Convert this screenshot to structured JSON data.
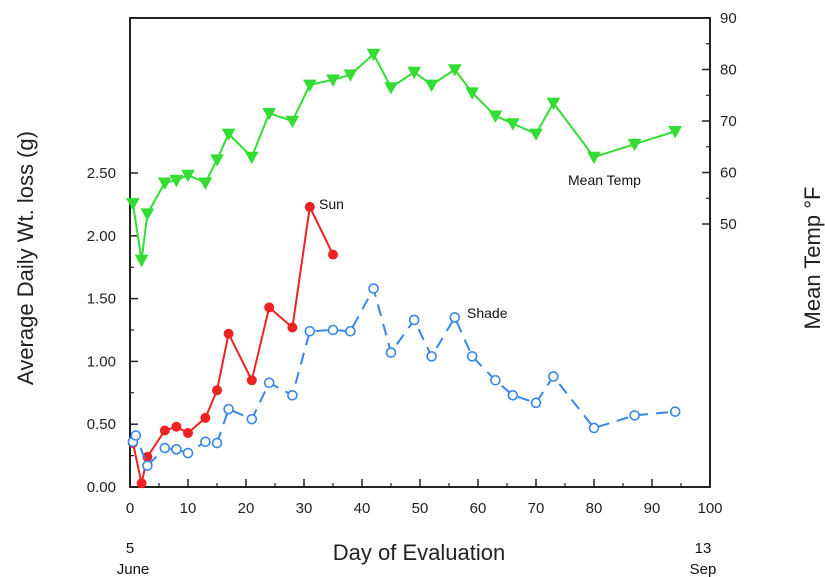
{
  "chart_data": {
    "type": "line",
    "xlabel": "Day of Evaluation",
    "ylabel_left": "Average Daily Wt. loss (g)",
    "ylabel_right": "Mean Temp  °F",
    "xlim": [
      0,
      100
    ],
    "ylim_left": [
      0,
      2.5
    ],
    "ylim_right": [
      50,
      90
    ],
    "x_ticks": [
      "0",
      "10",
      "20",
      "30",
      "40",
      "50",
      "60",
      "70",
      "80",
      "90",
      "100"
    ],
    "y_left_ticks": [
      "0.00",
      "0.50",
      "1.00",
      "1.50",
      "2.00",
      "2.50"
    ],
    "y_right_ticks": [
      "50",
      "60",
      "70",
      "80",
      "90"
    ],
    "date_start": {
      "day": "5",
      "month": "June"
    },
    "date_end": {
      "day": "13",
      "month": "Sep"
    },
    "colors": {
      "sun": "#ee2222",
      "shade": "#3a86e8",
      "temp": "#33dd33",
      "axis": "#222222"
    },
    "series": [
      {
        "name": "Sun",
        "axis": "left",
        "style": "solid-filled-circle",
        "x": [
          0.5,
          2,
          3,
          6,
          8,
          10,
          13,
          15,
          17,
          21,
          24,
          28,
          31,
          35
        ],
        "y": [
          0.35,
          0.03,
          0.24,
          0.45,
          0.48,
          0.43,
          0.55,
          0.77,
          1.22,
          0.85,
          1.43,
          1.27,
          2.23,
          1.85
        ]
      },
      {
        "name": "Shade",
        "axis": "left",
        "style": "dashed-open-circle",
        "x": [
          0.5,
          1,
          3,
          6,
          8,
          10,
          13,
          15,
          17,
          21,
          24,
          28,
          31,
          35,
          38,
          42,
          45,
          49,
          52,
          56,
          59,
          63,
          66,
          70,
          73,
          80,
          87,
          94
        ],
        "y": [
          0.36,
          0.41,
          0.17,
          0.31,
          0.3,
          0.27,
          0.36,
          0.35,
          0.62,
          0.54,
          0.83,
          0.73,
          1.24,
          1.25,
          1.24,
          1.58,
          1.07,
          1.33,
          1.04,
          1.35,
          1.04,
          0.85,
          0.73,
          0.67,
          0.88,
          0.47,
          0.57,
          0.6
        ]
      },
      {
        "name": "Mean Temp",
        "axis": "right",
        "style": "solid-filled-triangle-down",
        "x": [
          0.5,
          2,
          3,
          6,
          8,
          10,
          13,
          15,
          17,
          21,
          24,
          28,
          31,
          35,
          38,
          42,
          45,
          49,
          52,
          56,
          59,
          63,
          66,
          70,
          73,
          80,
          87,
          94
        ],
        "y": [
          54,
          43,
          52,
          58,
          58.5,
          59.5,
          58,
          62.5,
          67.5,
          63,
          71.5,
          70,
          77,
          78,
          79,
          83,
          76.5,
          79.5,
          77,
          80,
          75.5,
          71,
          69.5,
          67.5,
          73.5,
          63,
          65.5,
          68
        ]
      }
    ]
  }
}
